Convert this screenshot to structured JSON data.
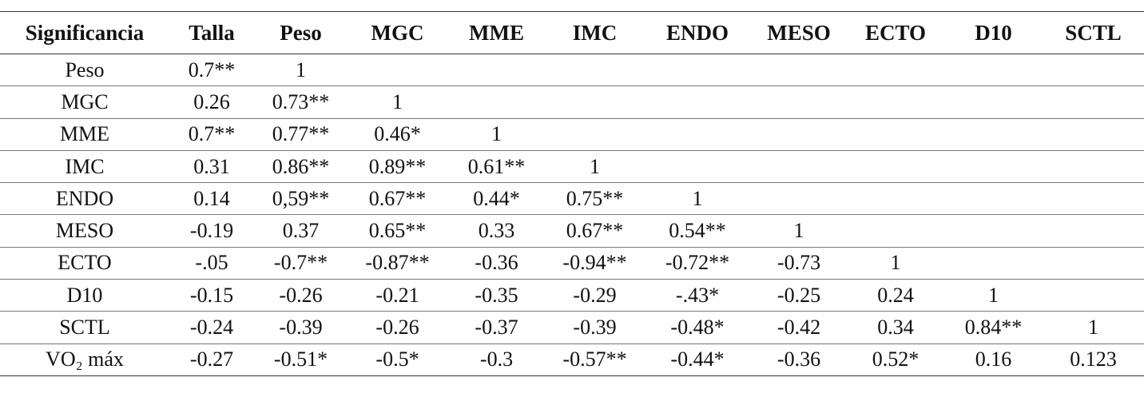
{
  "table": {
    "header": [
      "Significancia",
      "Talla",
      "Peso",
      "MGC",
      "MME",
      "IMC",
      "ENDO",
      "MESO",
      "ECTO",
      "D10",
      "SCTL"
    ],
    "rows": [
      {
        "label": "Peso",
        "values": [
          "0.7**",
          "1"
        ]
      },
      {
        "label": "MGC",
        "values": [
          "0.26",
          "0.73**",
          "1"
        ]
      },
      {
        "label": "MME",
        "values": [
          "0.7**",
          "0.77**",
          "0.46*",
          "1"
        ]
      },
      {
        "label": "IMC",
        "values": [
          "0.31",
          "0.86**",
          "0.89**",
          "0.61**",
          "1"
        ]
      },
      {
        "label": "ENDO",
        "values": [
          "0.14",
          "0,59**",
          "0.67**",
          "0.44*",
          "0.75**",
          "1"
        ]
      },
      {
        "label": "MESO",
        "values": [
          "-0.19",
          "0.37",
          "0.65**",
          "0.33",
          "0.67**",
          "0.54**",
          "1"
        ]
      },
      {
        "label": "ECTO",
        "values": [
          "-.05",
          "-0.7**",
          "-0.87**",
          "-0.36",
          "-0.94**",
          "-0.72**",
          "-0.73",
          "1"
        ]
      },
      {
        "label": "D10",
        "values": [
          "-0.15",
          "-0.26",
          "-0.21",
          "-0.35",
          "-0.29",
          "-.43*",
          "-0.25",
          "0.24",
          "1"
        ]
      },
      {
        "label": "SCTL",
        "values": [
          "-0.24",
          "-0.39",
          "-0.26",
          "-0.37",
          "-0.39",
          "-0.48*",
          "-0.42",
          "0.34",
          "0.84**",
          "1"
        ]
      },
      {
        "label": "VO₂ máx",
        "values": [
          "-0.27",
          "-0.51*",
          "-0.5*",
          "-0.3",
          "-0.57**",
          "-0.44*",
          "-0.36",
          "0.52*",
          "0.16",
          "0.123"
        ]
      }
    ]
  }
}
